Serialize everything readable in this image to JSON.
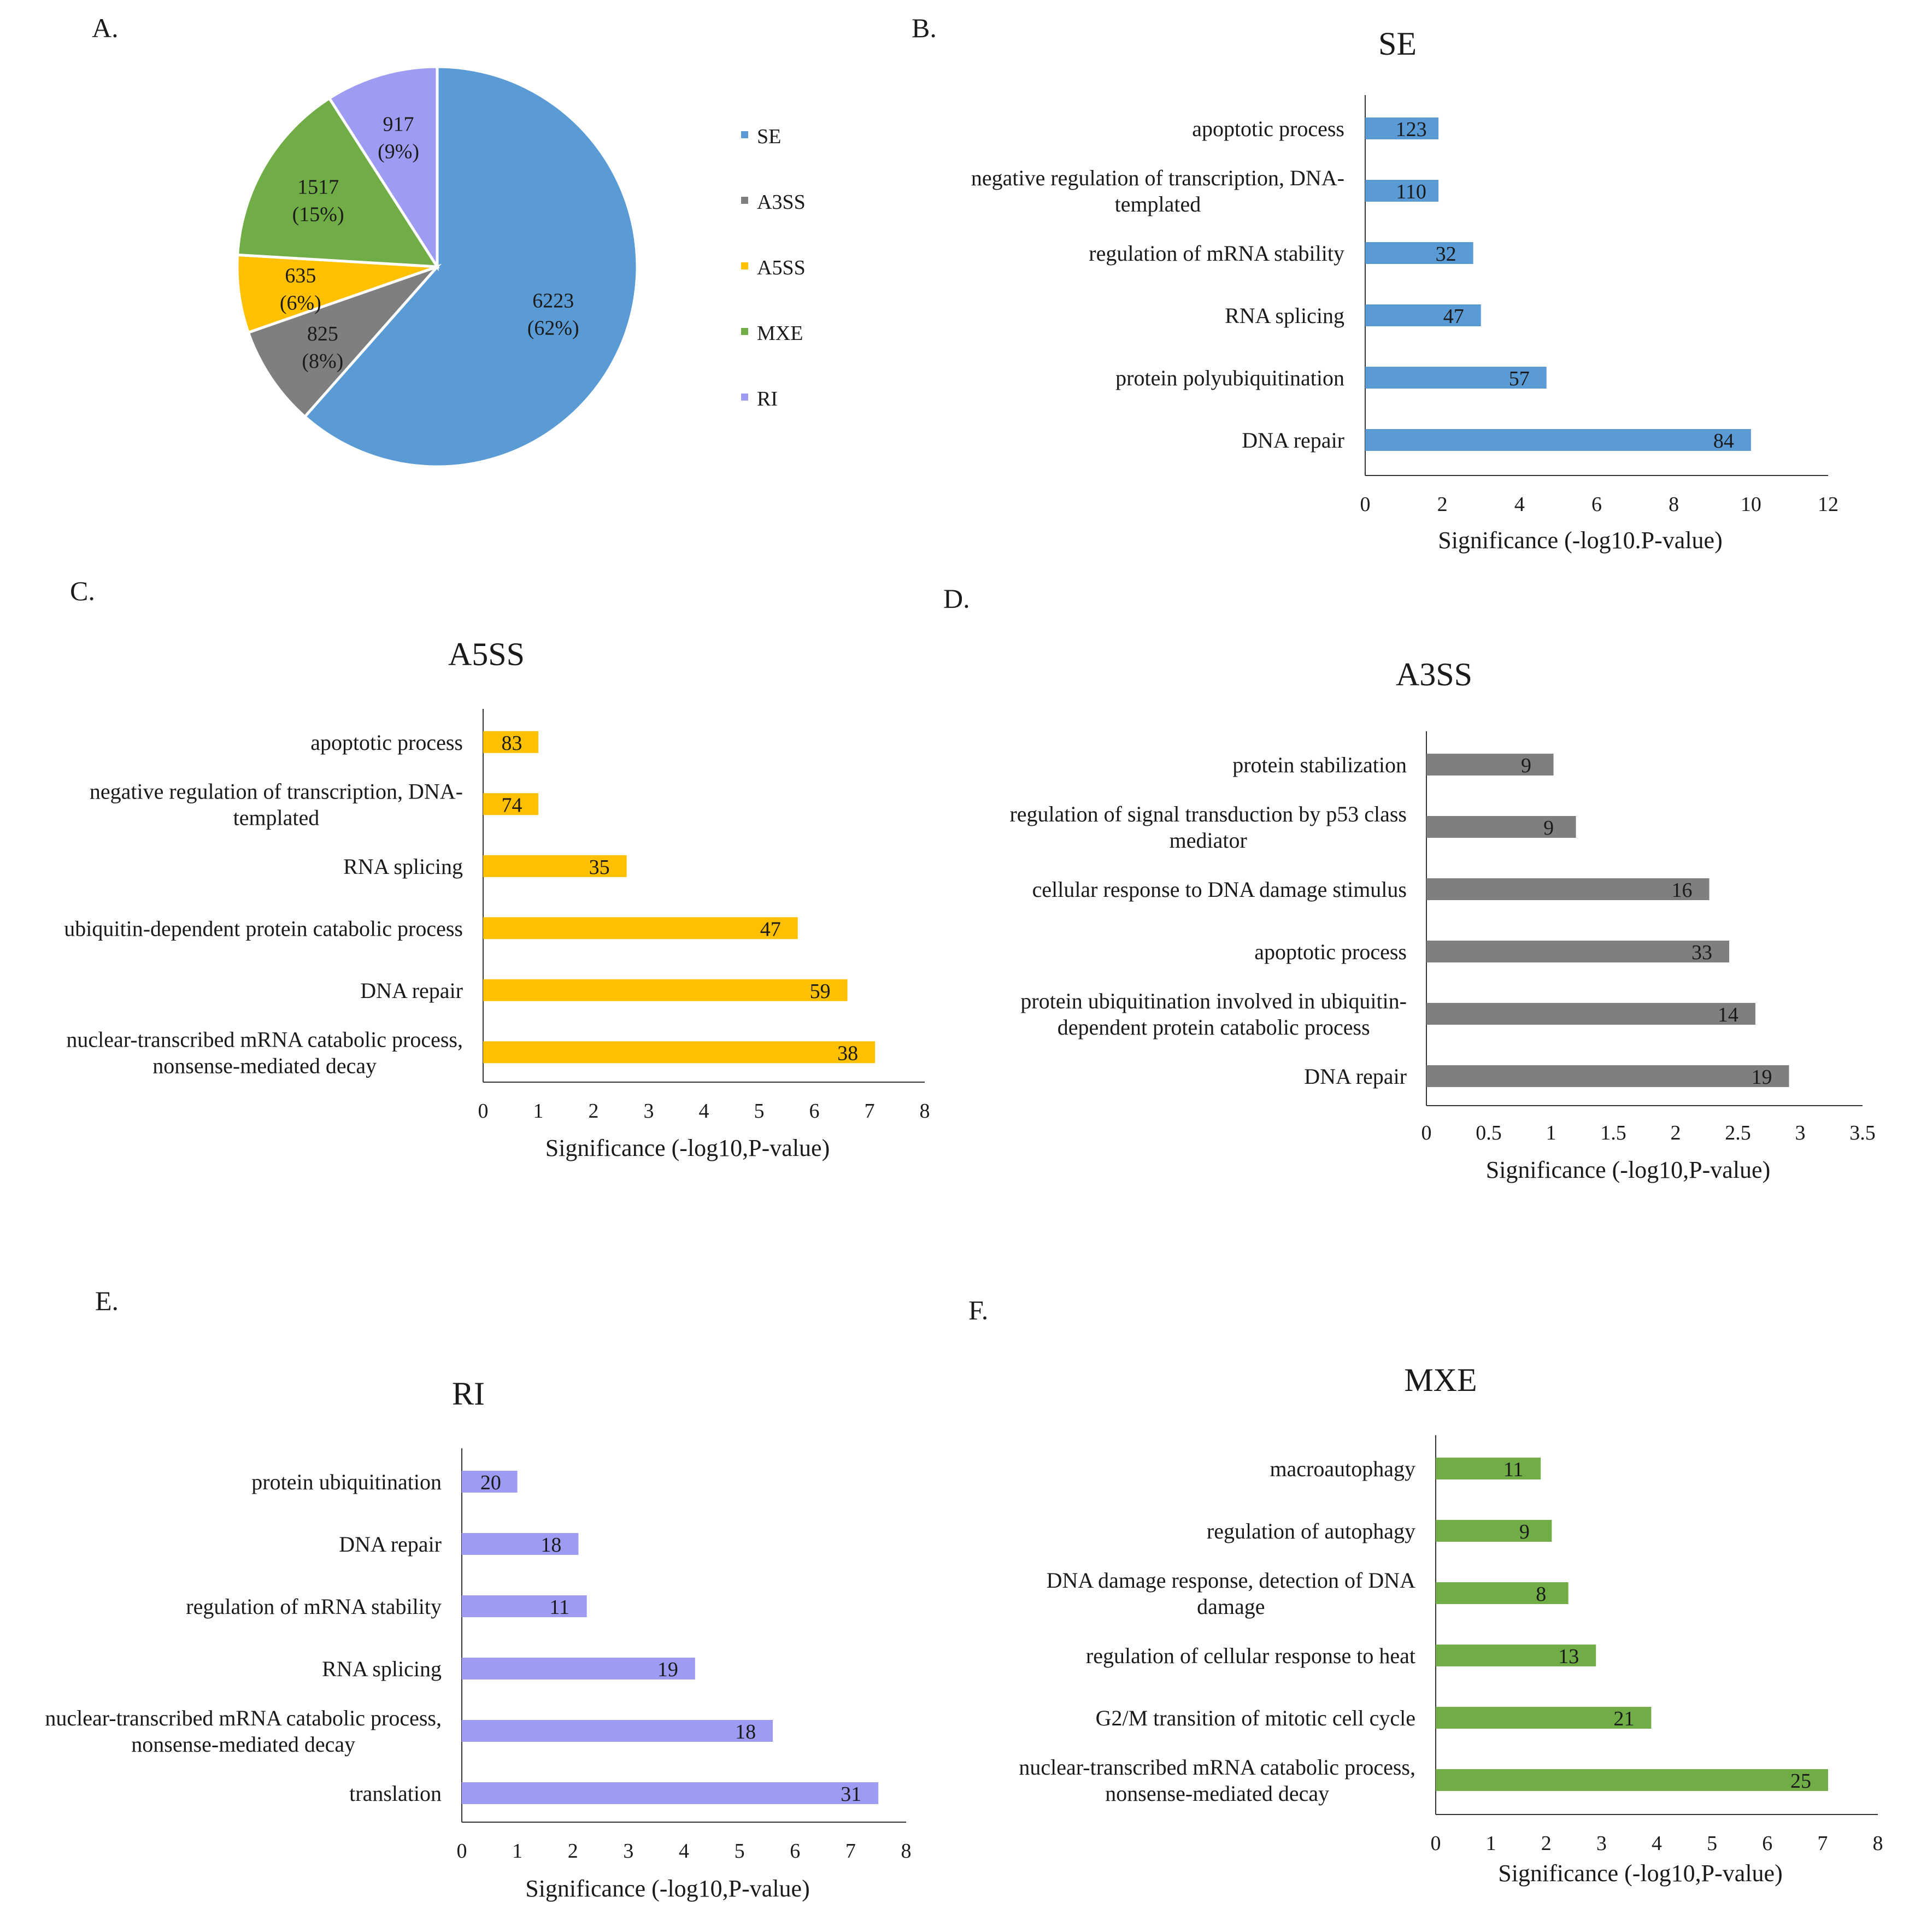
{
  "chart_data": [
    {
      "panel": "A.",
      "type": "pie",
      "title": "",
      "slices": [
        {
          "label": "SE",
          "value": 6223,
          "pct": "(62%)",
          "color": "#5b9bd5"
        },
        {
          "label": "A3SS",
          "value": 825,
          "pct": "(8%)",
          "color": "#7f7f7f"
        },
        {
          "label": "A5SS",
          "value": 635,
          "pct": "(6%)",
          "color": "#ffc000"
        },
        {
          "label": "MXE",
          "value": 1517,
          "pct": "(15%)",
          "color": "#70ad47"
        },
        {
          "label": "RI",
          "value": 917,
          "pct": "(9%)",
          "color": "#9e9cf2"
        }
      ],
      "legend_order": [
        "SE",
        "A3SS",
        "A5SS",
        "MXE",
        "RI"
      ],
      "legend": "right"
    },
    {
      "panel": "B.",
      "type": "bar",
      "orientation": "horizontal",
      "title": "SE",
      "title_color": "#2aa8e6",
      "color": "#5b9bd5",
      "categories": [
        [
          "apoptotic process"
        ],
        [
          "negative regulation of transcription, DNA-",
          "templated"
        ],
        [
          "regulation of mRNA stability"
        ],
        [
          "RNA splicing"
        ],
        [
          "protein polyubiquitination"
        ],
        [
          "DNA repair"
        ]
      ],
      "values": [
        1.9,
        1.9,
        2.8,
        3.0,
        4.7,
        10.0
      ],
      "labels": [
        "123",
        "110",
        "32",
        "47",
        "57",
        "84"
      ],
      "xlim": [
        0,
        12
      ],
      "ticks": [
        "0",
        "2",
        "4",
        "6",
        "8",
        "10",
        "12"
      ],
      "xlabel": "Significance (-log10.P-value)"
    },
    {
      "panel": "C.",
      "type": "bar",
      "orientation": "horizontal",
      "title": "A5SS",
      "title_color": "#e8a800",
      "color": "#ffc000",
      "categories": [
        [
          "apoptotic process"
        ],
        [
          "negative regulation of transcription, DNA-",
          "templated"
        ],
        [
          "RNA splicing"
        ],
        [
          "ubiquitin-dependent protein catabolic process"
        ],
        [
          "DNA repair"
        ],
        [
          "nuclear-transcribed mRNA catabolic process,",
          "nonsense-mediated decay"
        ]
      ],
      "values": [
        1.0,
        1.0,
        2.6,
        5.7,
        6.6,
        7.1
      ],
      "labels": [
        "83",
        "74",
        "35",
        "47",
        "59",
        "38"
      ],
      "xlim": [
        0,
        8
      ],
      "ticks": [
        "0",
        "1",
        "2",
        "3",
        "4",
        "5",
        "6",
        "7",
        "8"
      ],
      "xlabel": "Significance (-log10,P-value)"
    },
    {
      "panel": "D.",
      "type": "bar",
      "orientation": "horizontal",
      "title": "A3SS",
      "title_color": "#1a1a1a",
      "color": "#7f7f7f",
      "categories": [
        [
          "protein stabilization"
        ],
        [
          "regulation of signal transduction by p53 class",
          "mediator"
        ],
        [
          "cellular response to DNA damage stimulus"
        ],
        [
          "apoptotic process"
        ],
        [
          "protein ubiquitination involved in ubiquitin-",
          "dependent protein catabolic process"
        ],
        [
          "DNA repair"
        ]
      ],
      "values": [
        1.02,
        1.2,
        2.27,
        2.43,
        2.64,
        2.91
      ],
      "labels": [
        "9",
        "9",
        "16",
        "33",
        "14",
        "19"
      ],
      "xlim": [
        0,
        3.5
      ],
      "ticks": [
        "0",
        "0.5",
        "1",
        "1.5",
        "2",
        "2.5",
        "3",
        "3.5"
      ],
      "xlabel": "Significance (-log10,P-value)"
    },
    {
      "panel": "E.",
      "type": "bar",
      "orientation": "horizontal",
      "title": "RI",
      "title_color": "#1a1a1a",
      "color": "#9e9cf2",
      "categories": [
        [
          "protein ubiquitination"
        ],
        [
          "DNA repair"
        ],
        [
          "regulation of mRNA stability"
        ],
        [
          "RNA splicing"
        ],
        [
          "nuclear-transcribed mRNA catabolic process,",
          "nonsense-mediated decay"
        ],
        [
          "translation"
        ]
      ],
      "values": [
        1.0,
        2.1,
        2.25,
        4.2,
        5.6,
        7.5
      ],
      "labels": [
        "20",
        "18",
        "11",
        "19",
        "18",
        "31"
      ],
      "xlim": [
        0,
        8
      ],
      "ticks": [
        "0",
        "1",
        "2",
        "3",
        "4",
        "5",
        "6",
        "7",
        "8"
      ],
      "xlabel": "Significance (-log10,P-value)"
    },
    {
      "panel": "F.",
      "type": "bar",
      "orientation": "horizontal",
      "title": "MXE",
      "title_color": "#3aa84a",
      "color": "#70ad47",
      "categories": [
        [
          "macroautophagy"
        ],
        [
          "regulation of autophagy"
        ],
        [
          "DNA damage response, detection of DNA",
          "damage"
        ],
        [
          "regulation of cellular response to heat"
        ],
        [
          "G2/M transition of mitotic cell cycle"
        ],
        [
          "nuclear-transcribed mRNA catabolic process,",
          "nonsense-mediated decay"
        ]
      ],
      "values": [
        1.9,
        2.1,
        2.4,
        2.9,
        3.9,
        7.1
      ],
      "labels": [
        "11",
        "9",
        "8",
        "13",
        "21",
        "25"
      ],
      "xlim": [
        0,
        8
      ],
      "ticks": [
        "0",
        "1",
        "2",
        "3",
        "4",
        "5",
        "6",
        "7",
        "8"
      ],
      "xlabel": "Significance (-log10,P-value)"
    }
  ]
}
